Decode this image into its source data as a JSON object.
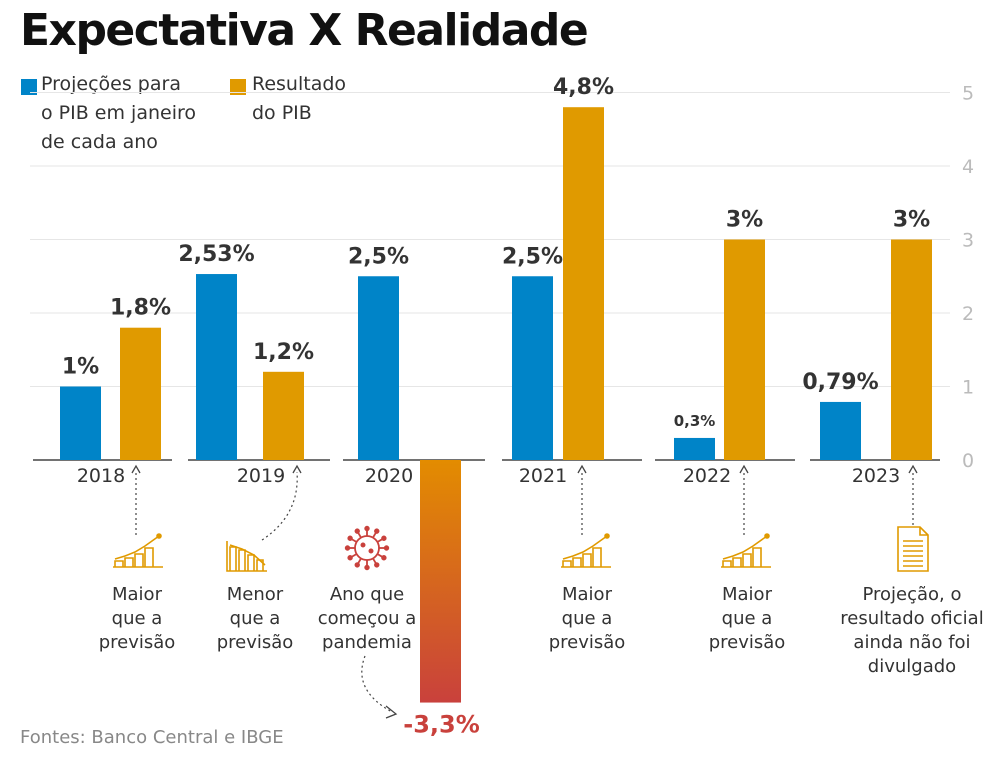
{
  "title": "Expectativa X Realidade",
  "legend": [
    {
      "label": "Projeções para\no PIB em janeiro\nde cada ano",
      "color": "#0084c8"
    },
    {
      "label": "Resultado\ndo PIB",
      "color": "#e09a00"
    }
  ],
  "source": "Fontes: Banco Central e IBGE",
  "colors": {
    "projection": "#0084c8",
    "result": "#e09a00",
    "negative_top": "#e38c00",
    "negative_bottom": "#c9413c",
    "grid": "#e6e6e6",
    "axis_text": "#bbbbbb"
  },
  "chart_data": {
    "type": "bar",
    "categories": [
      "2018",
      "2019",
      "2020",
      "2021",
      "2022",
      "2023"
    ],
    "series": [
      {
        "name": "Projeções para o PIB em janeiro de cada ano",
        "values": [
          1,
          2.53,
          2.5,
          2.5,
          0.3,
          0.79
        ],
        "labels": [
          "1%",
          "2,53%",
          "2,5%",
          "2,5%",
          "0,3%",
          "0,79%"
        ]
      },
      {
        "name": "Resultado do PIB",
        "values": [
          1.8,
          1.2,
          -3.3,
          4.8,
          3,
          3
        ],
        "labels": [
          "1,8%",
          "1,2%",
          "-3,3%",
          "4,8%",
          "3%",
          "3%"
        ]
      }
    ],
    "yticks": [
      "0",
      "1",
      "2",
      "3",
      "4",
      "5"
    ],
    "ylim": [
      -3.3,
      5
    ],
    "grid": true,
    "axis_position": "right"
  },
  "notes": [
    {
      "icon": "chart-up-icon",
      "text": "Maior\nque a\nprevisão"
    },
    {
      "icon": "chart-down-icon",
      "text": "Menor\nque a\nprevisão"
    },
    {
      "icon": "virus-icon",
      "text": "Ano que\ncomeçou a\npandemia"
    },
    {
      "icon": "chart-up-icon",
      "text": "Maior\nque a\nprevisão"
    },
    {
      "icon": "chart-up-icon",
      "text": "Maior\nque a\nprevisão"
    },
    {
      "icon": "document-icon",
      "text": "Projeção, o\nresultado oficial\nainda não foi\ndivulgado"
    }
  ]
}
